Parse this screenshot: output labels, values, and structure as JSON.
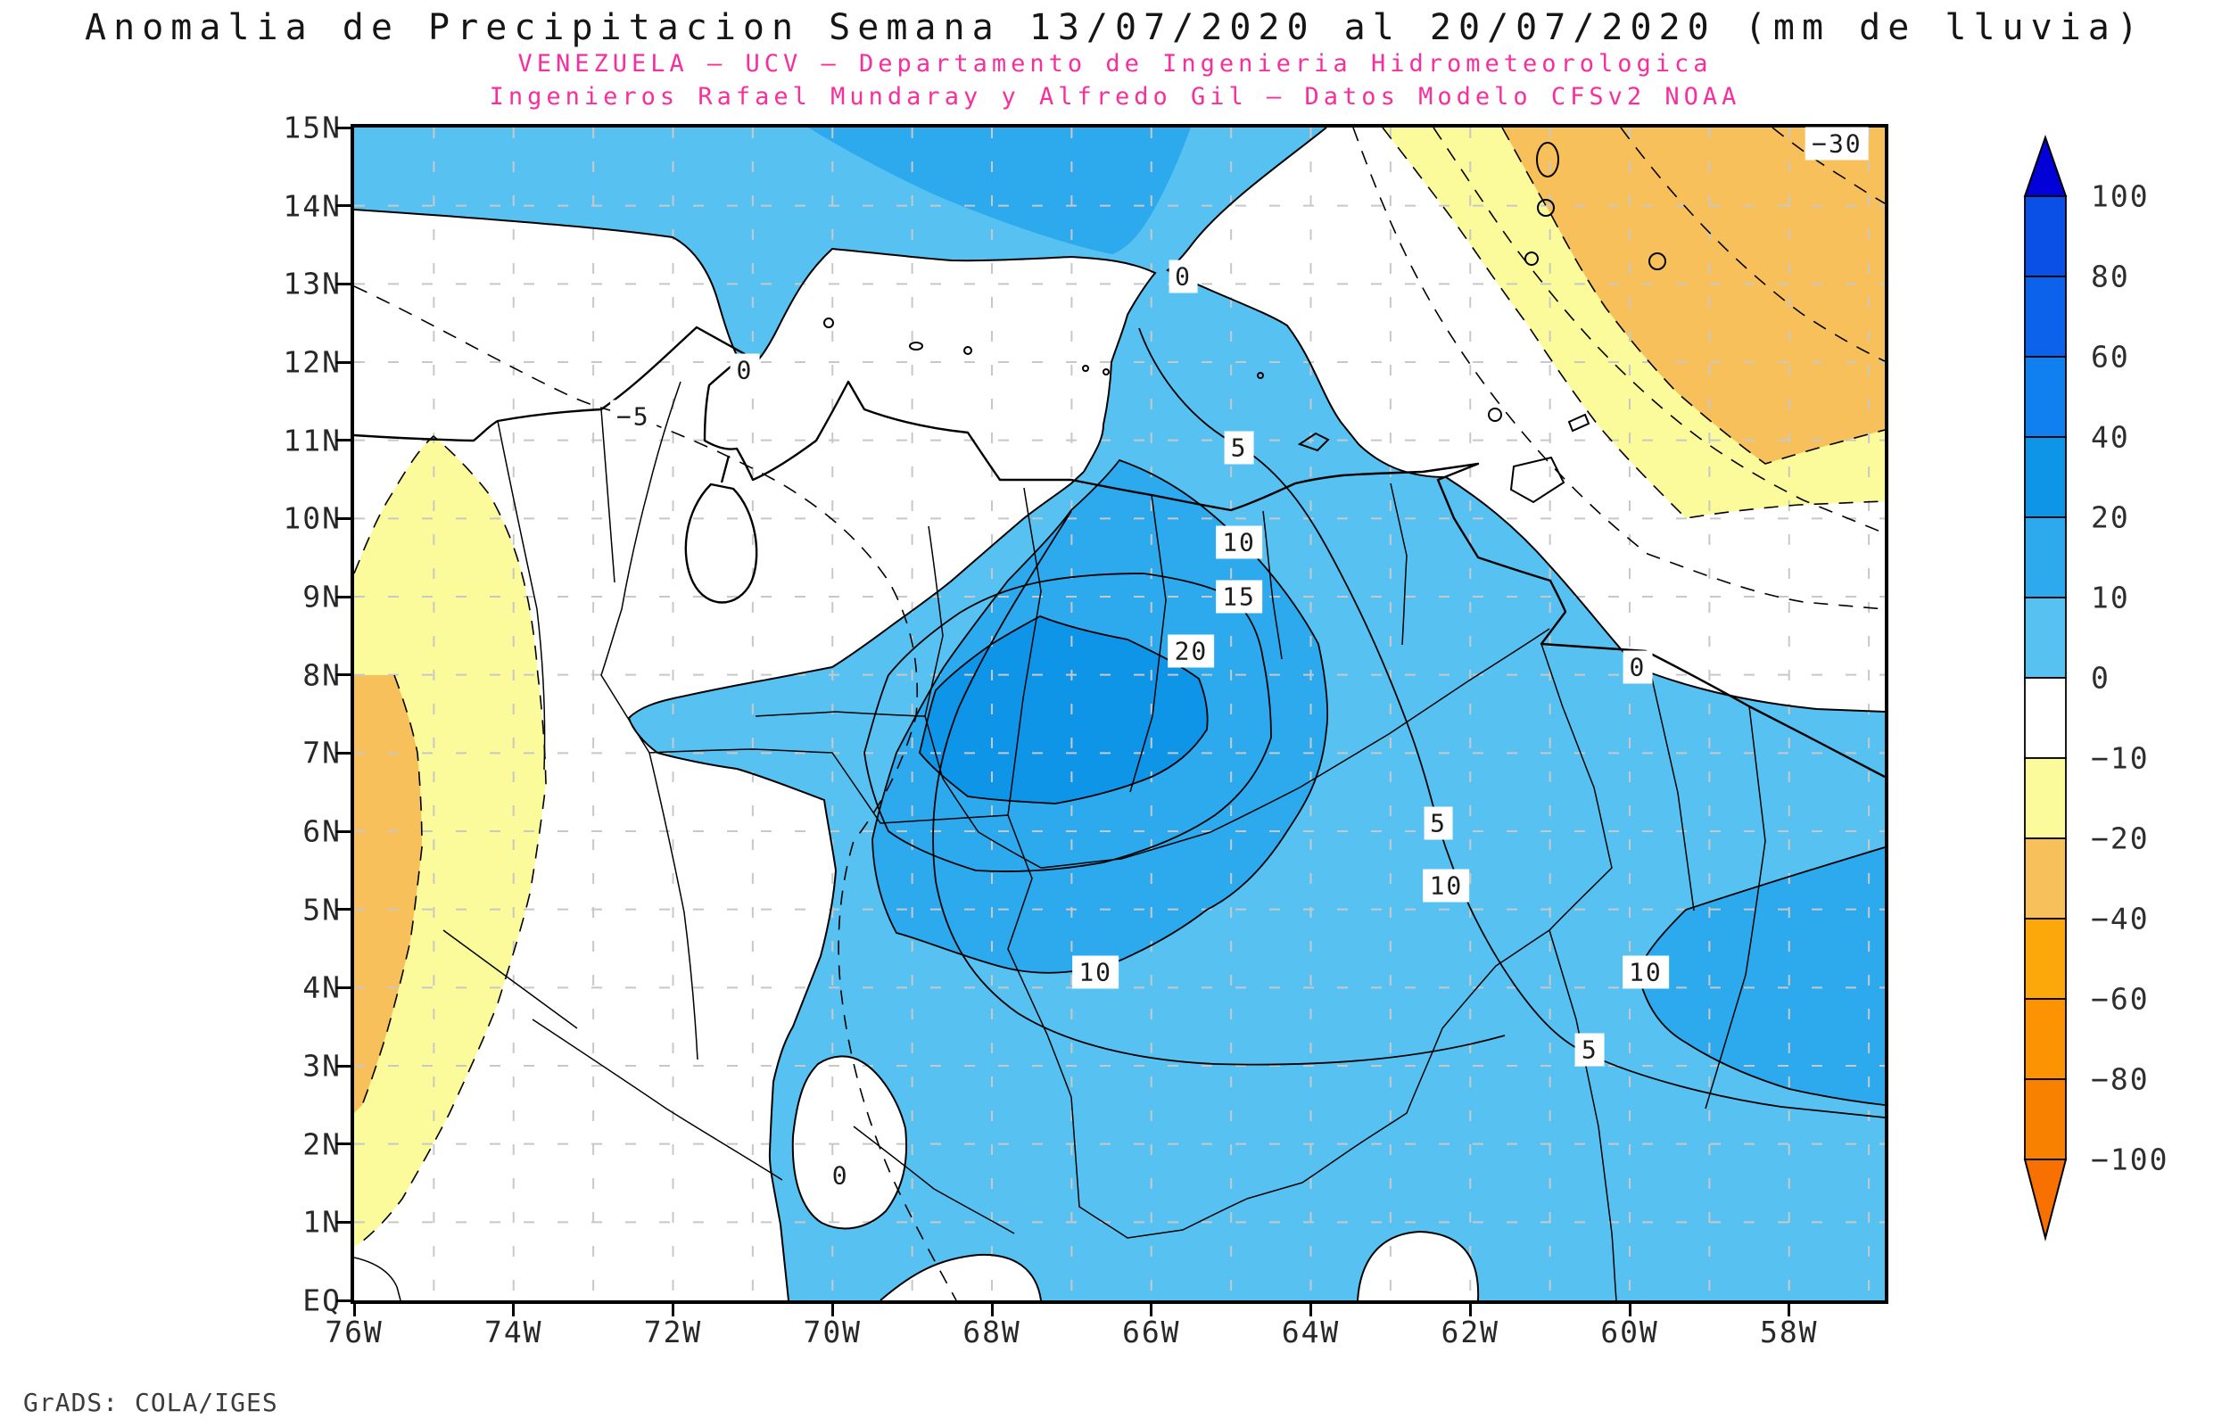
{
  "title": "Anomalia de Precipitacion Semana 13/07/2020 al 20/07/2020 (mm de lluvia)",
  "subtitles": [
    {
      "text": "VENEZUELA – UCV – Departamento de Ingenieria Hidrometeorologica"
    },
    {
      "text": "Ingenieros Rafael Mundaray y Alfredo Gil – Datos Modelo CFSv2 NOAA"
    }
  ],
  "footer": "GrADS: COLA/IGES",
  "colors": {
    "subtitle": "#f72e9e",
    "title_text": "#161616",
    "axis_text": "#282828",
    "grid": "#c8c8c8",
    "frame": "#000000"
  },
  "axes": {
    "lat_ticks": [
      "15N",
      "14N",
      "13N",
      "12N",
      "11N",
      "10N",
      "9N",
      "8N",
      "7N",
      "6N",
      "5N",
      "4N",
      "3N",
      "2N",
      "1N",
      "EQ"
    ],
    "lon_ticks": [
      "76W",
      "74W",
      "72W",
      "70W",
      "68W",
      "66W",
      "64W",
      "62W",
      "60W",
      "58W"
    ]
  },
  "colorbar": {
    "orientation": "vertical",
    "tick_labels": [
      "100",
      "80",
      "60",
      "40",
      "20",
      "10",
      "0",
      "-10",
      "-20",
      "-40",
      "-60",
      "-80",
      "-100"
    ],
    "segments": [
      {
        "range": "> 100",
        "color": "#0202d8"
      },
      {
        "range": "80 to 100",
        "color": "#0a50e6"
      },
      {
        "range": "60 to 80",
        "color": "#0c62ea"
      },
      {
        "range": "40 to 60",
        "color": "#1080f0"
      },
      {
        "range": "20 to 40",
        "color": "#0e95e8"
      },
      {
        "range": "10 to 20",
        "color": "#2caaed"
      },
      {
        "range": "0 to 10",
        "color": "#57c2f1"
      },
      {
        "range": "-10 to 0",
        "color": "#ffffff"
      },
      {
        "range": "-20 to -10",
        "color": "#fbfb9b"
      },
      {
        "range": "-40 to -20",
        "color": "#f8c05a"
      },
      {
        "range": "-60 to -40",
        "color": "#fca70a"
      },
      {
        "range": "-80 to -60",
        "color": "#fc9303"
      },
      {
        "range": "-100 to -80",
        "color": "#f98100"
      },
      {
        "range": "< -100",
        "color": "#f87000"
      }
    ]
  },
  "map": {
    "lon_west_edge_w": 76.0,
    "lon_east_edge_w": 56.8,
    "lat_south_edge_n": 0.0,
    "lat_north_edge_n": 15.0,
    "contour_labels": [
      {
        "value": "0",
        "lon_w": 71.1,
        "lat_n": 11.9
      },
      {
        "value": "0",
        "lon_w": 65.6,
        "lat_n": 13.1
      },
      {
        "value": "-5",
        "lon_w": 72.5,
        "lat_n": 11.3
      },
      {
        "value": "5",
        "lon_w": 64.9,
        "lat_n": 10.9
      },
      {
        "value": "10",
        "lon_w": 64.9,
        "lat_n": 9.7
      },
      {
        "value": "15",
        "lon_w": 64.9,
        "lat_n": 9.0
      },
      {
        "value": "20",
        "lon_w": 65.5,
        "lat_n": 8.3
      },
      {
        "value": "0",
        "lon_w": 59.9,
        "lat_n": 8.1
      },
      {
        "value": "5",
        "lon_w": 62.4,
        "lat_n": 6.1
      },
      {
        "value": "10",
        "lon_w": 62.3,
        "lat_n": 5.3
      },
      {
        "value": "10",
        "lon_w": 66.7,
        "lat_n": 4.2
      },
      {
        "value": "10",
        "lon_w": 59.8,
        "lat_n": 4.2
      },
      {
        "value": "5",
        "lon_w": 60.5,
        "lat_n": 3.2
      },
      {
        "value": "0",
        "lon_w": 69.9,
        "lat_n": 1.6
      },
      {
        "value": "-30",
        "lon_w": 57.4,
        "lat_n": 14.8
      }
    ]
  },
  "chart_data": {
    "type": "heatmap",
    "subtype": "filled-contour-anomaly-map (GrADS)",
    "title": "Anomalia de Precipitacion Semana 13/07/2020 al 20/07/2020 (mm de lluvia)",
    "subtitle": "VENEZUELA – UCV – Departamento de Ingenieria Hidrometeorologica / Ingenieros Rafael Mundaray y Alfredo Gil – Datos Modelo CFSv2 NOAA",
    "units": "mm de lluvia",
    "period": "13/07/2020 al 20/07/2020",
    "model": "CFSv2 NOAA",
    "xlabel": "Longitude (76W to 58W, labeled every 2 deg)",
    "ylabel": "Latitude (EQ to 15N, labeled every 1 deg)",
    "xlim_w": [
      76,
      56.8
    ],
    "ylim_n": [
      0,
      15
    ],
    "grid": "on (1-degree dotted gray)",
    "legend_position": "vertical colorbar at right",
    "fill_levels_mm": [
      -100,
      -80,
      -60,
      -40,
      -20,
      -10,
      0,
      10,
      20,
      40,
      60,
      80,
      100
    ],
    "line_contour_interval_mm": 5,
    "labeled_contour_values_mm": [
      -30,
      -5,
      0,
      5,
      10,
      15,
      20
    ],
    "negative_contour_style": "dashed",
    "features": [
      {
        "description": "Positive anomaly core 20-40 mm over central Venezuela llanos",
        "center": {
          "lon_w": 67.2,
          "lat_n": 7.4
        }
      },
      {
        "description": "Nested 10-20 mm region over central/southern Venezuela and a band in the southeast near the Guyana border"
      },
      {
        "description": "Broad 0-10 mm positive area covering most of Venezuela south to the Equator and east to the map edge"
      },
      {
        "description": "Positive 0-20 mm band along the northern map edge (15N) west of about 64W, with a tongue reaching the central Caribbean coast near 66W"
      },
      {
        "description": "Negative anomaly (-10 to -40 mm, labeled contour -30) over the northeastern Atlantic corner beyond about 62W north of about 9N"
      },
      {
        "description": "Negative anomaly strip (-10 to -40 mm) hugging the western map edge over Colombia between about 11N and 1N"
      },
      {
        "description": "Near-zero white areas over northwestern Venezuela, the southwestern corner, and small pockets near the Equator around 70W and 62.5W"
      }
    ]
  }
}
